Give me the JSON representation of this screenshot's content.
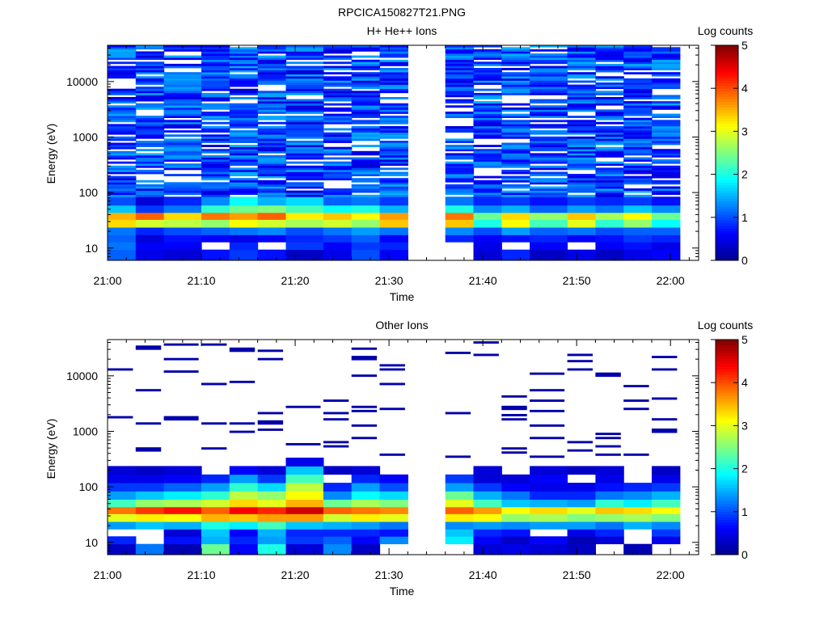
{
  "figure_title": "RPCICA150827T21.PNG",
  "colors": {
    "missing": "#ffffff",
    "axis": "#000000",
    "colormap": [
      "#00008f",
      "#0000ff",
      "#0080ff",
      "#00ffff",
      "#80ff80",
      "#ffff00",
      "#ff8000",
      "#ff0000",
      "#800000"
    ]
  },
  "chart_data": [
    {
      "type": "heatmap",
      "title": "H+ He++ Ions",
      "xlabel": "Time",
      "ylabel": "Energy (eV)",
      "yscale": "log",
      "xlim": [
        "21:00",
        "22:03"
      ],
      "ylim": [
        6,
        45000
      ],
      "xticks": [
        "21:00",
        "21:10",
        "21:20",
        "21:30",
        "21:40",
        "21:50",
        "22:00"
      ],
      "yticks": [
        "10",
        "100",
        "1000",
        "10000"
      ],
      "colorbar": {
        "label": "Log counts",
        "range": [
          0,
          5
        ],
        "ticks": [
          "0",
          "1",
          "2",
          "3",
          "4",
          "5"
        ]
      },
      "time_bins": [
        "21:00",
        "21:03",
        "21:06",
        "21:10",
        "21:13",
        "21:16",
        "21:19",
        "21:23",
        "21:26",
        "21:29",
        "21:32",
        "21:36",
        "21:39",
        "21:42",
        "21:45",
        "21:49",
        "21:52",
        "21:55",
        "21:58"
      ],
      "energy_bins_eV": [
        8,
        11,
        15,
        20,
        28,
        38,
        50,
        70
      ],
      "values": [
        [
          1.1,
          1.2,
          1.1,
          1.2,
          3.3,
          3.5,
          1.6,
          1.0
        ],
        [
          0.5,
          0.6,
          0.4,
          0.8,
          2.9,
          3.9,
          0.9,
          0.4
        ],
        [
          0.4,
          0.6,
          0.7,
          1.0,
          2.8,
          3.3,
          1.2,
          0.8
        ],
        [
          0.7,
          null,
          0.6,
          1.1,
          2.6,
          3.8,
          2.1,
          1.3
        ],
        [
          0.9,
          0.8,
          0.5,
          1.2,
          3.1,
          3.6,
          2.4,
          1.9
        ],
        [
          0.7,
          null,
          0.6,
          1.3,
          2.9,
          3.9,
          2.5,
          1.5
        ],
        [
          0.3,
          0.9,
          0.8,
          1.0,
          2.7,
          3.2,
          2.2,
          1.7
        ],
        [
          0.5,
          0.6,
          0.9,
          1.2,
          2.9,
          3.4,
          1.9,
          1.1
        ],
        [
          1.0,
          0.9,
          1.1,
          1.4,
          2.6,
          3.1,
          2.0,
          1.2
        ],
        [
          0.6,
          0.8,
          0.6,
          1.2,
          3.4,
          3.6,
          1.5,
          0.9
        ],
        [
          null,
          null,
          null,
          null,
          null,
          null,
          null,
          null
        ],
        [
          null,
          null,
          0.8,
          1.3,
          3.4,
          3.8,
          2.0,
          1.2
        ],
        [
          0.4,
          0.5,
          0.6,
          1.0,
          2.0,
          2.4,
          1.3,
          0.8
        ],
        [
          0.8,
          null,
          0.7,
          1.4,
          3.1,
          3.3,
          1.5,
          0.9
        ],
        [
          0.3,
          0.6,
          0.8,
          1.1,
          2.2,
          2.6,
          1.1,
          0.7
        ],
        [
          0.5,
          null,
          0.6,
          1.2,
          3.0,
          3.4,
          1.4,
          0.9
        ],
        [
          0.3,
          0.6,
          0.7,
          1.0,
          2.1,
          2.7,
          1.2,
          0.8
        ],
        [
          0.5,
          0.7,
          0.9,
          1.1,
          2.6,
          3.1,
          1.6,
          0.9
        ],
        [
          0.6,
          0.5,
          0.8,
          1.1,
          1.9,
          2.4,
          1.3,
          0.7
        ]
      ]
    },
    {
      "type": "heatmap",
      "title": "Other Ions",
      "xlabel": "Time",
      "ylabel": "Energy (eV)",
      "yscale": "log",
      "xlim": [
        "21:00",
        "22:03"
      ],
      "ylim": [
        6,
        45000
      ],
      "xticks": [
        "21:00",
        "21:10",
        "21:20",
        "21:30",
        "21:40",
        "21:50",
        "22:00"
      ],
      "yticks": [
        "10",
        "100",
        "1000",
        "10000"
      ],
      "colorbar": {
        "label": "Log counts",
        "range": [
          0,
          5
        ],
        "ticks": [
          "0",
          "1",
          "2",
          "3",
          "4",
          "5"
        ]
      },
      "time_bins": [
        "21:00",
        "21:03",
        "21:06",
        "21:10",
        "21:13",
        "21:16",
        "21:19",
        "21:23",
        "21:26",
        "21:29",
        "21:32",
        "21:36",
        "21:39",
        "21:42",
        "21:45",
        "21:49",
        "21:52",
        "21:55",
        "21:58"
      ],
      "energy_bins_eV": [
        8,
        11,
        15,
        20,
        28,
        38,
        50,
        70,
        100,
        140,
        200,
        280
      ],
      "values": [
        [
          0.3,
          0.8,
          null,
          1.4,
          3.0,
          3.8,
          2.2,
          1.4,
          0.9,
          0.5,
          0.4,
          null
        ],
        [
          1.2,
          null,
          null,
          1.6,
          3.2,
          4.1,
          2.6,
          1.6,
          0.9,
          0.5,
          0.3,
          null
        ],
        [
          0.2,
          0.7,
          0.4,
          1.5,
          3.1,
          4.3,
          2.7,
          1.8,
          1.1,
          0.6,
          0.4,
          null
        ],
        [
          2.4,
          1.5,
          1.6,
          2.0,
          3.5,
          3.9,
          2.9,
          2.1,
          1.4,
          0.8,
          null,
          null
        ],
        [
          0.6,
          0.8,
          0.6,
          1.8,
          3.4,
          4.4,
          3.3,
          2.8,
          2.1,
          1.4,
          0.6,
          null
        ],
        [
          2.0,
          1.4,
          1.5,
          2.2,
          3.6,
          4.2,
          3.0,
          2.6,
          1.7,
          0.9,
          0.4,
          null
        ],
        [
          0.4,
          0.9,
          0.8,
          1.6,
          3.6,
          4.6,
          3.5,
          3.1,
          2.8,
          2.2,
          1.6,
          0.5
        ],
        [
          1.3,
          1.1,
          0.8,
          1.5,
          2.9,
          3.9,
          2.4,
          1.3,
          0.8,
          null,
          0.3,
          null
        ],
        [
          0.3,
          0.6,
          0.8,
          1.4,
          3.2,
          3.8,
          2.7,
          1.9,
          1.4,
          0.8,
          0.4,
          null
        ],
        [
          null,
          1.3,
          0.7,
          1.2,
          3.0,
          3.7,
          2.5,
          1.7,
          1.0,
          0.6,
          null,
          null
        ],
        [
          null,
          null,
          null,
          null,
          null,
          null,
          null,
          null,
          null,
          null,
          null,
          null
        ],
        [
          null,
          1.8,
          1.6,
          1.3,
          3.2,
          3.9,
          3.0,
          2.4,
          1.4,
          0.9,
          null,
          null
        ],
        [
          0.4,
          0.6,
          0.8,
          1.4,
          3.1,
          3.6,
          2.2,
          1.5,
          0.9,
          0.4,
          0.4,
          null
        ],
        [
          0.5,
          0.3,
          0.7,
          1.3,
          2.6,
          3.1,
          1.6,
          1.2,
          0.6,
          0.4,
          null,
          null
        ],
        [
          0.4,
          0.6,
          null,
          1.4,
          2.7,
          3.3,
          1.5,
          0.8,
          0.5,
          0.6,
          0.4,
          null
        ],
        [
          0.3,
          0.2,
          0.5,
          1.4,
          2.5,
          3.0,
          1.4,
          0.8,
          0.5,
          null,
          0.3,
          null
        ],
        [
          null,
          0.4,
          0.8,
          1.2,
          2.6,
          3.4,
          2.1,
          1.2,
          0.7,
          0.5,
          0.4,
          null
        ],
        [
          0.2,
          null,
          null,
          1.5,
          2.7,
          3.3,
          1.8,
          1.3,
          0.8,
          null,
          null,
          null
        ],
        [
          null,
          0.5,
          0.9,
          1.3,
          2.5,
          3.1,
          2.2,
          1.5,
          0.9,
          0.5,
          0.3,
          null
        ]
      ]
    }
  ]
}
